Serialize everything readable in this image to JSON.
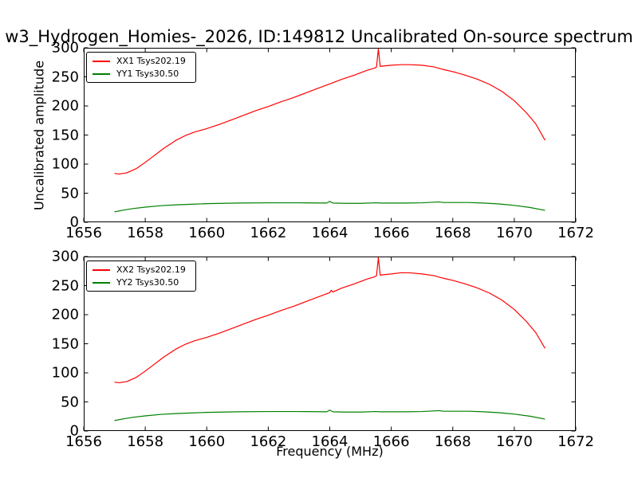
{
  "title": "w3_Hydrogen_Homies-_2026, ID:149812 Uncalibrated On-source spectrum",
  "xlabel": "Frequency (MHz)",
  "ylabel": "Uncalibrated amplitude",
  "colors": {
    "line_xx": "#ff0000",
    "line_yy": "#008000",
    "axis": "#000000",
    "background": "#ffffff",
    "text": "#000000"
  },
  "axes": {
    "xlim": [
      1656,
      1672
    ],
    "ylim": [
      0,
      300
    ],
    "xticks": [
      1656,
      1658,
      1660,
      1662,
      1664,
      1666,
      1668,
      1670,
      1672
    ],
    "yticks": [
      0,
      50,
      100,
      150,
      200,
      250,
      300
    ],
    "grid": false,
    "tick_direction": "in"
  },
  "chart_data": [
    {
      "type": "line",
      "subplot": "top",
      "legend": [
        {
          "label": "XX1 Tsys202.19",
          "color": "#ff0000"
        },
        {
          "label": "YY1 Tsys30.50",
          "color": "#008000"
        }
      ],
      "legend_position": "upper-left",
      "series": [
        {
          "name": "XX1",
          "color": "#ff0000",
          "points": [
            [
              1657.0,
              84
            ],
            [
              1657.15,
              83
            ],
            [
              1657.4,
              85
            ],
            [
              1657.7,
              92
            ],
            [
              1658.0,
              103
            ],
            [
              1658.3,
              115
            ],
            [
              1658.6,
              127
            ],
            [
              1659.0,
              141
            ],
            [
              1659.3,
              149
            ],
            [
              1659.6,
              155
            ],
            [
              1660.0,
              161
            ],
            [
              1660.4,
              168
            ],
            [
              1660.8,
              176
            ],
            [
              1661.2,
              184
            ],
            [
              1661.6,
              192
            ],
            [
              1662.0,
              199
            ],
            [
              1662.4,
              207
            ],
            [
              1662.8,
              214
            ],
            [
              1663.2,
              222
            ],
            [
              1663.6,
              230
            ],
            [
              1664.0,
              238
            ],
            [
              1664.4,
              246
            ],
            [
              1664.8,
              253
            ],
            [
              1665.2,
              261
            ],
            [
              1665.45,
              265
            ],
            [
              1665.52,
              267
            ],
            [
              1665.58,
              298
            ],
            [
              1665.64,
              268
            ],
            [
              1665.8,
              269
            ],
            [
              1666.0,
              270
            ],
            [
              1666.3,
              271
            ],
            [
              1666.6,
              271
            ],
            [
              1667.0,
              270
            ],
            [
              1667.4,
              267
            ],
            [
              1667.6,
              264
            ],
            [
              1667.75,
              262
            ],
            [
              1668.0,
              259
            ],
            [
              1668.4,
              253
            ],
            [
              1668.8,
              246
            ],
            [
              1669.2,
              237
            ],
            [
              1669.6,
              225
            ],
            [
              1670.0,
              209
            ],
            [
              1670.4,
              188
            ],
            [
              1670.7,
              169
            ],
            [
              1671.0,
              141
            ]
          ]
        },
        {
          "name": "YY1",
          "color": "#008000",
          "points": [
            [
              1657.0,
              18
            ],
            [
              1657.3,
              21
            ],
            [
              1657.6,
              23.5
            ],
            [
              1658.0,
              26
            ],
            [
              1658.5,
              28.5
            ],
            [
              1659.0,
              30
            ],
            [
              1659.5,
              31
            ],
            [
              1660.0,
              32
            ],
            [
              1661.0,
              33
            ],
            [
              1662.0,
              33.5
            ],
            [
              1663.0,
              33.5
            ],
            [
              1663.9,
              33
            ],
            [
              1664.0,
              36
            ],
            [
              1664.1,
              33
            ],
            [
              1664.5,
              32.5
            ],
            [
              1665.0,
              32.5
            ],
            [
              1665.5,
              33.5
            ],
            [
              1665.65,
              33
            ],
            [
              1666.0,
              33
            ],
            [
              1666.5,
              33
            ],
            [
              1667.0,
              33.5
            ],
            [
              1667.55,
              35
            ],
            [
              1667.7,
              34
            ],
            [
              1668.0,
              34
            ],
            [
              1668.5,
              34
            ],
            [
              1669.0,
              33
            ],
            [
              1669.5,
              31.5
            ],
            [
              1670.0,
              29
            ],
            [
              1670.5,
              25.5
            ],
            [
              1671.0,
              20.5
            ]
          ]
        }
      ]
    },
    {
      "type": "line",
      "subplot": "bottom",
      "legend": [
        {
          "label": "XX2 Tsys202.19",
          "color": "#ff0000"
        },
        {
          "label": "YY2 Tsys30.50",
          "color": "#008000"
        }
      ],
      "legend_position": "upper-left",
      "series": [
        {
          "name": "XX2",
          "color": "#ff0000",
          "points": [
            [
              1657.0,
              84
            ],
            [
              1657.15,
              83
            ],
            [
              1657.4,
              85
            ],
            [
              1657.7,
              92
            ],
            [
              1658.0,
              103
            ],
            [
              1658.3,
              115
            ],
            [
              1658.6,
              127
            ],
            [
              1659.0,
              141
            ],
            [
              1659.3,
              149
            ],
            [
              1659.6,
              155
            ],
            [
              1660.0,
              161
            ],
            [
              1660.4,
              168
            ],
            [
              1660.8,
              176
            ],
            [
              1661.2,
              184
            ],
            [
              1661.6,
              192
            ],
            [
              1662.0,
              199
            ],
            [
              1662.4,
              207
            ],
            [
              1662.8,
              214
            ],
            [
              1663.2,
              222
            ],
            [
              1663.6,
              230
            ],
            [
              1664.0,
              238
            ],
            [
              1664.05,
              242
            ],
            [
              1664.1,
              239
            ],
            [
              1664.4,
              246
            ],
            [
              1664.8,
              253
            ],
            [
              1665.2,
              261
            ],
            [
              1665.45,
              265
            ],
            [
              1665.52,
              267
            ],
            [
              1665.58,
              298
            ],
            [
              1665.64,
              268
            ],
            [
              1665.8,
              269
            ],
            [
              1666.0,
              270
            ],
            [
              1666.3,
              272
            ],
            [
              1666.6,
              272
            ],
            [
              1667.0,
              270
            ],
            [
              1667.4,
              267
            ],
            [
              1667.6,
              264
            ],
            [
              1667.75,
              262
            ],
            [
              1668.0,
              259
            ],
            [
              1668.4,
              253
            ],
            [
              1668.8,
              246
            ],
            [
              1669.2,
              237
            ],
            [
              1669.6,
              225
            ],
            [
              1670.0,
              209
            ],
            [
              1670.4,
              188
            ],
            [
              1670.7,
              169
            ],
            [
              1671.0,
              142
            ]
          ]
        },
        {
          "name": "YY2",
          "color": "#008000",
          "points": [
            [
              1657.0,
              18
            ],
            [
              1657.3,
              21
            ],
            [
              1657.6,
              23.5
            ],
            [
              1658.0,
              26
            ],
            [
              1658.5,
              28.5
            ],
            [
              1659.0,
              30
            ],
            [
              1659.5,
              31
            ],
            [
              1660.0,
              32
            ],
            [
              1661.0,
              33
            ],
            [
              1662.0,
              33.5
            ],
            [
              1663.0,
              33.5
            ],
            [
              1663.9,
              33
            ],
            [
              1664.0,
              36
            ],
            [
              1664.1,
              33
            ],
            [
              1664.5,
              32.5
            ],
            [
              1665.0,
              32.5
            ],
            [
              1665.5,
              33.5
            ],
            [
              1665.65,
              33
            ],
            [
              1666.0,
              33
            ],
            [
              1666.5,
              33
            ],
            [
              1667.0,
              33.5
            ],
            [
              1667.55,
              35
            ],
            [
              1667.7,
              34
            ],
            [
              1668.0,
              34
            ],
            [
              1668.5,
              34
            ],
            [
              1669.0,
              33
            ],
            [
              1669.5,
              31.5
            ],
            [
              1670.0,
              29
            ],
            [
              1670.5,
              25.5
            ],
            [
              1671.0,
              20.5
            ]
          ]
        }
      ]
    }
  ]
}
